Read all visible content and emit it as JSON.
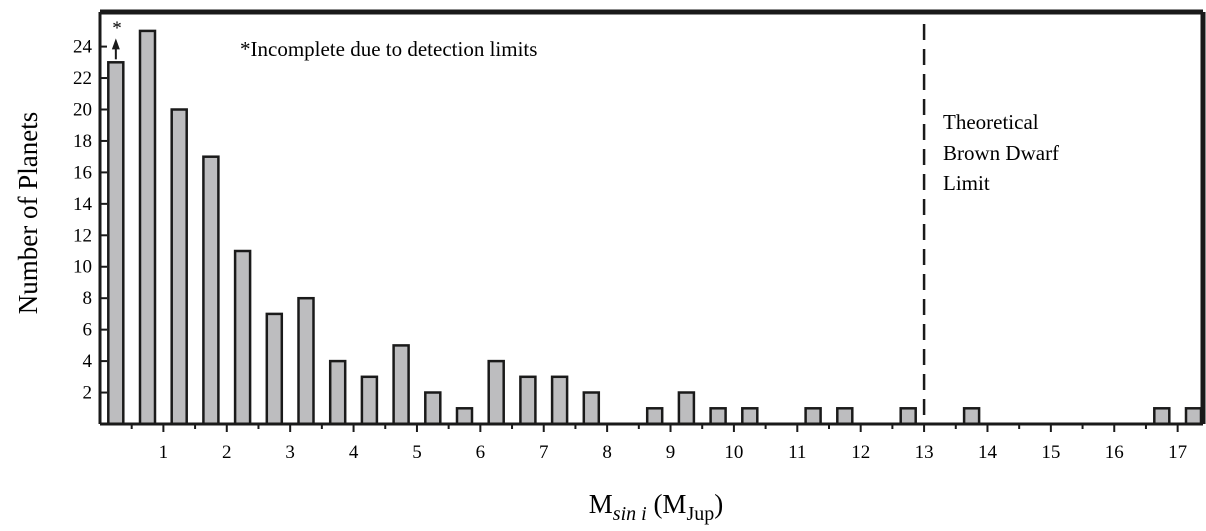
{
  "chart_data": {
    "type": "bar",
    "xlabel": {
      "main": "M",
      "sub": "sin i",
      "unit_open": " (M",
      "unit_sub": "Jup",
      "unit_close": ")"
    },
    "ylabel": "Number of Planets",
    "xlim": [
      0,
      17.4
    ],
    "ylim": [
      0,
      26.2
    ],
    "x_ticks": [
      1,
      2,
      3,
      4,
      5,
      6,
      7,
      8,
      9,
      10,
      11,
      12,
      13,
      14,
      15,
      16,
      17
    ],
    "y_ticks": [
      2,
      4,
      6,
      8,
      10,
      12,
      14,
      16,
      18,
      20,
      22,
      24
    ],
    "bin_width": 0.5,
    "bins": [
      {
        "x": 0.25,
        "value": 23
      },
      {
        "x": 0.75,
        "value": 25
      },
      {
        "x": 1.25,
        "value": 20
      },
      {
        "x": 1.75,
        "value": 17
      },
      {
        "x": 2.25,
        "value": 11
      },
      {
        "x": 2.75,
        "value": 7
      },
      {
        "x": 3.25,
        "value": 8
      },
      {
        "x": 3.75,
        "value": 4
      },
      {
        "x": 4.25,
        "value": 3
      },
      {
        "x": 4.75,
        "value": 5
      },
      {
        "x": 5.25,
        "value": 2
      },
      {
        "x": 5.75,
        "value": 1
      },
      {
        "x": 6.25,
        "value": 4
      },
      {
        "x": 6.75,
        "value": 3
      },
      {
        "x": 7.25,
        "value": 3
      },
      {
        "x": 7.75,
        "value": 2
      },
      {
        "x": 8.75,
        "value": 1
      },
      {
        "x": 9.25,
        "value": 2
      },
      {
        "x": 9.75,
        "value": 1
      },
      {
        "x": 10.25,
        "value": 1
      },
      {
        "x": 11.25,
        "value": 1
      },
      {
        "x": 11.75,
        "value": 1
      },
      {
        "x": 12.75,
        "value": 1
      },
      {
        "x": 13.75,
        "value": 1
      },
      {
        "x": 16.75,
        "value": 1
      },
      {
        "x": 17.25,
        "value": 1
      }
    ],
    "vline": {
      "x": 13,
      "style": "dashed"
    },
    "annotations": {
      "incomplete_marker": "*",
      "incomplete_note": "*Incomplete due to detection limits",
      "limit_label": [
        "Theoretical",
        "Brown Dwarf",
        "Limit"
      ]
    },
    "grid": false,
    "legend": "none",
    "colors": {
      "bar_fill": "#bdbdbf",
      "bar_stroke": "#1a1a1a",
      "axis": "#1a1a1a"
    }
  }
}
